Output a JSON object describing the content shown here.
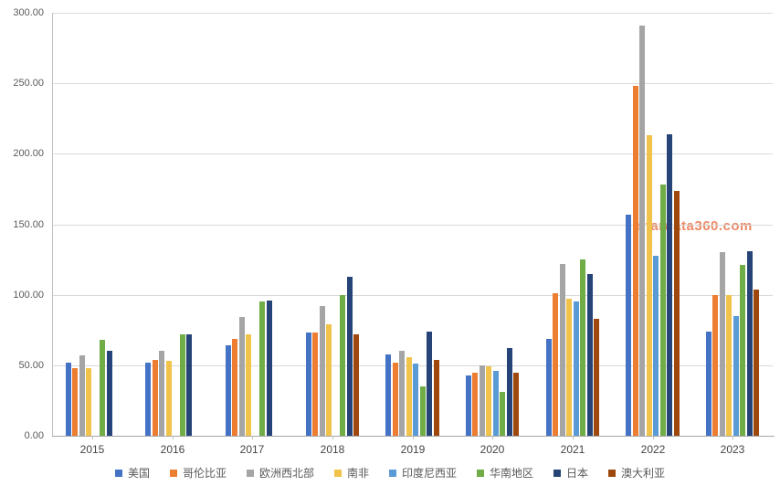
{
  "watermark": {
    "text": "stardata360.com",
    "color": "#E8744A"
  },
  "chart_data": {
    "type": "bar",
    "title": "",
    "xlabel": "",
    "ylabel": "",
    "categories": [
      "2015",
      "2016",
      "2017",
      "2018",
      "2019",
      "2020",
      "2021",
      "2022",
      "2023"
    ],
    "series": [
      {
        "name": "美国",
        "color": "#4472C4",
        "values": [
          52,
          52,
          64,
          73,
          58,
          43,
          69,
          157,
          74
        ]
      },
      {
        "name": "哥伦比亚",
        "color": "#ED7D31",
        "values": [
          48,
          54,
          69,
          73,
          52,
          45,
          101,
          248,
          100
        ]
      },
      {
        "name": "欧洲西北部",
        "color": "#A5A5A5",
        "values": [
          57,
          60,
          84,
          92,
          60,
          50,
          122,
          291,
          130
        ]
      },
      {
        "name": "南非",
        "color": "#F2C34B",
        "values": [
          48,
          53,
          72,
          79,
          56,
          49,
          97,
          213,
          100
        ]
      },
      {
        "name": "印度尼西亚",
        "color": "#5B9BD5",
        "values": [
          0,
          0,
          0,
          0,
          51,
          46,
          95,
          128,
          85
        ]
      },
      {
        "name": "华南地区",
        "color": "#70AD47",
        "values": [
          68,
          72,
          95,
          100,
          35,
          31,
          125,
          178,
          121
        ]
      },
      {
        "name": "日本",
        "color": "#264478",
        "values": [
          60,
          72,
          96,
          113,
          74,
          62,
          115,
          214,
          131
        ]
      },
      {
        "name": "澳大利亚",
        "color": "#9E480E",
        "values": [
          0,
          0,
          0,
          72,
          54,
          45,
          83,
          174,
          104
        ]
      }
    ],
    "ylim": [
      0,
      300
    ],
    "ytick_step": 50,
    "ytick_labels": [
      "0.00",
      "50.00",
      "100.00",
      "150.00",
      "200.00",
      "250.00",
      "300.00"
    ],
    "grid": true,
    "legend_position": "bottom"
  }
}
